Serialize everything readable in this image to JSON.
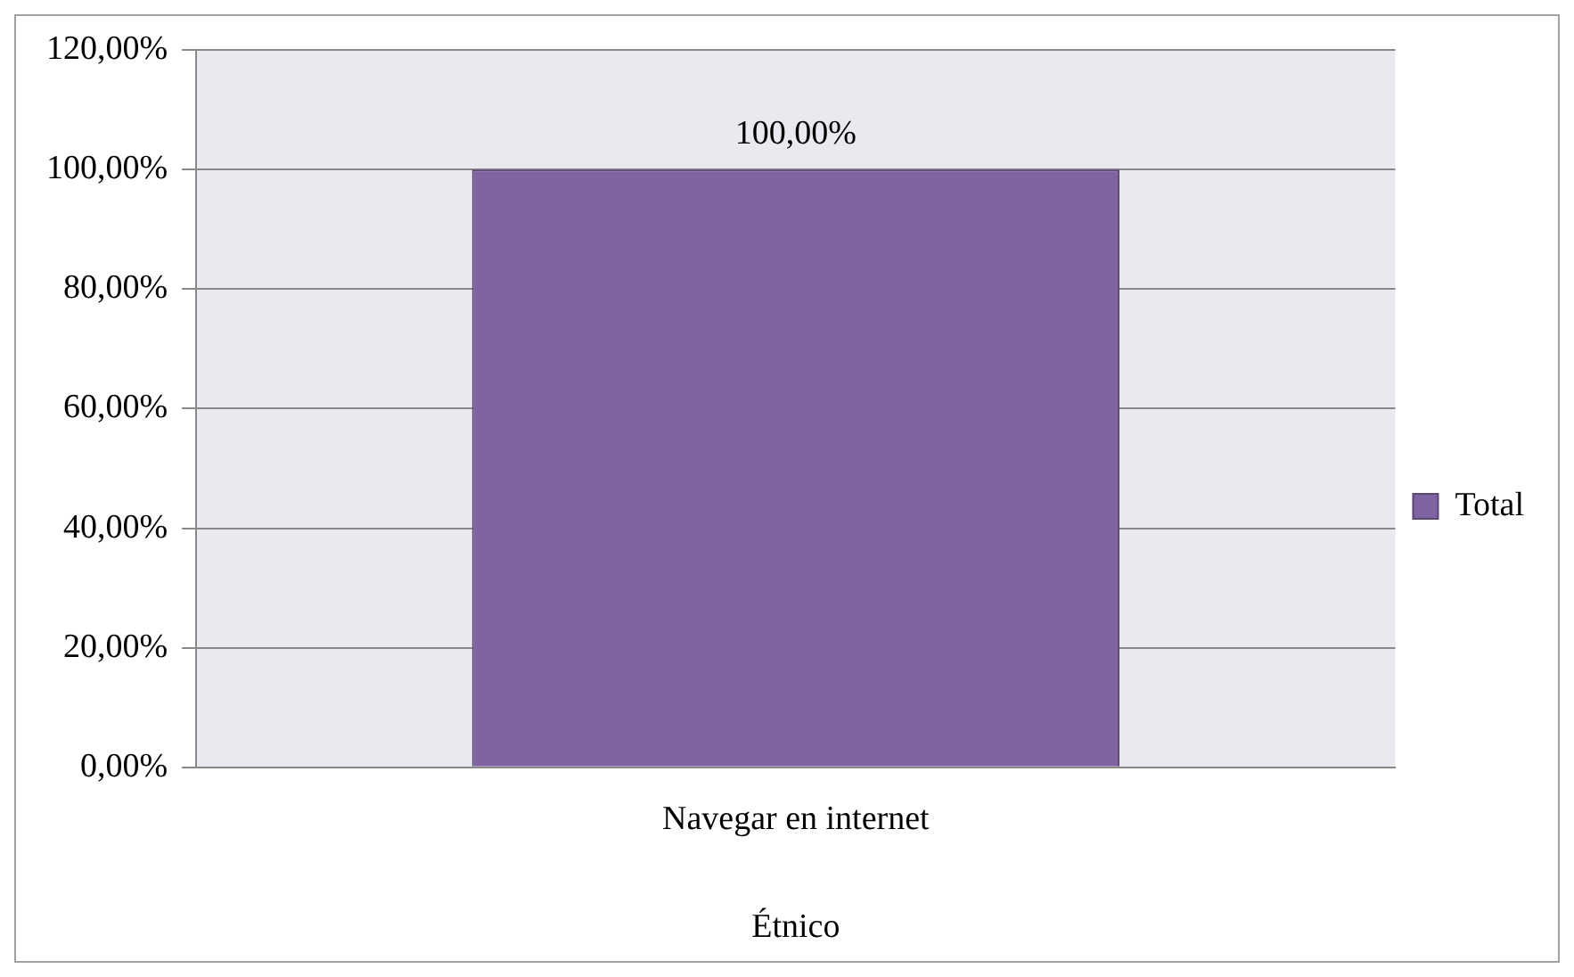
{
  "chart_data": {
    "type": "bar",
    "categories": [
      "Navegar en internet"
    ],
    "xlabel": "Étnico",
    "series": [
      {
        "name": "Total",
        "color": "#8064a2",
        "values": [
          100
        ],
        "value_labels": [
          "100,00%"
        ]
      }
    ],
    "ylim": [
      0,
      120
    ],
    "yticks": [
      {
        "value": 0,
        "label": "0,00%"
      },
      {
        "value": 20,
        "label": "20,00%"
      },
      {
        "value": 40,
        "label": "40,00%"
      },
      {
        "value": 60,
        "label": "60,00%"
      },
      {
        "value": 80,
        "label": "80,00%"
      },
      {
        "value": 100,
        "label": "100,00%"
      },
      {
        "value": 120,
        "label": "120,00%"
      }
    ],
    "grid": "y",
    "legend": "right"
  }
}
